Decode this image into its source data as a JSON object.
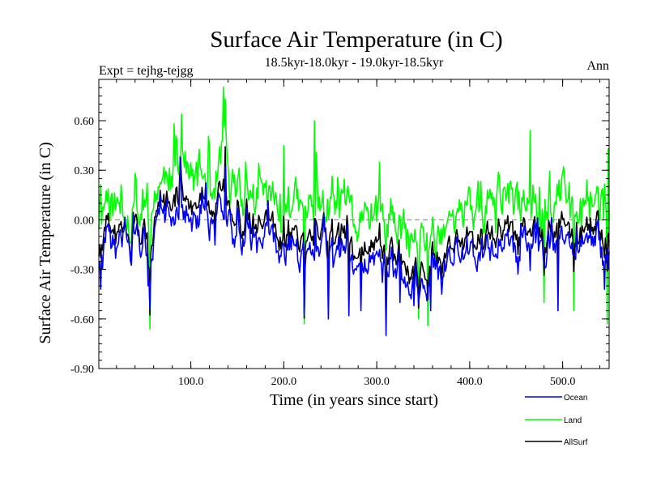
{
  "chart_data": {
    "type": "line",
    "title": "Surface Air Temperature (in C)",
    "subtitle": "18.5kyr-18.0kyr - 19.0kyr-18.5kyr",
    "left_label": "Expt = tejhg-tejgg",
    "right_label": "Ann",
    "xlabel": "Time (in years since start)",
    "ylabel": "Surface Air Temperature (in C)",
    "xlim": [
      1,
      550
    ],
    "ylim": [
      -0.9,
      0.85
    ],
    "x_ticks": [
      100,
      200,
      300,
      400,
      500
    ],
    "x_tick_labels": [
      "100.0",
      "200.0",
      "300.0",
      "400.0",
      "500.0"
    ],
    "y_ticks": [
      -0.9,
      -0.6,
      -0.3,
      0.0,
      0.3,
      0.6
    ],
    "y_tick_labels": [
      "-0.90",
      "-0.60",
      "-0.30",
      "0.00",
      "0.30",
      "0.60"
    ],
    "zero_line": 0,
    "colors": {
      "ocean": "#0000ff",
      "land": "#00ff00",
      "allsurf": "#000000",
      "zero": "#808080"
    },
    "series": [
      {
        "name": "Land",
        "x_start": 1,
        "x_step": 1,
        "anchors": [
          [
            1,
            0.0
          ],
          [
            5,
            0.05
          ],
          [
            10,
            0.18
          ],
          [
            15,
            0.1
          ],
          [
            20,
            0.05
          ],
          [
            25,
            0.08
          ],
          [
            30,
            0.12
          ],
          [
            35,
            -0.05
          ],
          [
            40,
            0.2
          ],
          [
            45,
            0.0
          ],
          [
            50,
            0.15
          ],
          [
            55,
            -0.1
          ],
          [
            60,
            0.1
          ],
          [
            65,
            0.25
          ],
          [
            70,
            0.2
          ],
          [
            75,
            0.35
          ],
          [
            80,
            0.2
          ],
          [
            85,
            0.3
          ],
          [
            90,
            0.45
          ],
          [
            95,
            0.3
          ],
          [
            100,
            0.25
          ],
          [
            105,
            0.2
          ],
          [
            110,
            0.3
          ],
          [
            115,
            0.25
          ],
          [
            120,
            0.2
          ],
          [
            125,
            0.2
          ],
          [
            130,
            0.3
          ],
          [
            135,
            0.5
          ],
          [
            140,
            0.25
          ],
          [
            145,
            0.2
          ],
          [
            150,
            0.2
          ],
          [
            155,
            0.1
          ],
          [
            160,
            0.12
          ],
          [
            165,
            0.15
          ],
          [
            170,
            0.12
          ],
          [
            175,
            0.18
          ],
          [
            180,
            0.15
          ],
          [
            185,
            0.15
          ],
          [
            190,
            0.1
          ],
          [
            195,
            0.05
          ],
          [
            200,
            0.08
          ],
          [
            205,
            0.12
          ],
          [
            210,
            0.1
          ],
          [
            215,
            0.08
          ],
          [
            220,
            0.0
          ],
          [
            225,
            0.05
          ],
          [
            230,
            0.1
          ],
          [
            235,
            0.12
          ],
          [
            240,
            0.05
          ],
          [
            245,
            0.08
          ],
          [
            250,
            0.05
          ],
          [
            255,
            0.03
          ],
          [
            260,
            0.05
          ],
          [
            265,
            0.0
          ],
          [
            270,
            0.05
          ],
          [
            275,
            0.0
          ],
          [
            280,
            -0.05
          ],
          [
            285,
            0.05
          ],
          [
            290,
            -0.1
          ],
          [
            295,
            0.05
          ],
          [
            300,
            0.0
          ],
          [
            305,
            -0.05
          ],
          [
            310,
            -0.05
          ],
          [
            315,
            0.05
          ],
          [
            320,
            -0.1
          ],
          [
            325,
            -0.05
          ],
          [
            330,
            -0.1
          ],
          [
            335,
            -0.15
          ],
          [
            340,
            -0.12
          ],
          [
            345,
            -0.18
          ],
          [
            350,
            -0.1
          ],
          [
            355,
            -0.15
          ],
          [
            360,
            -0.05
          ],
          [
            365,
            -0.1
          ],
          [
            370,
            -0.05
          ],
          [
            375,
            0.0
          ],
          [
            380,
            0.03
          ],
          [
            385,
            0.05
          ],
          [
            390,
            0.0
          ],
          [
            395,
            0.05
          ],
          [
            400,
            0.03
          ],
          [
            405,
            0.05
          ],
          [
            410,
            0.08
          ],
          [
            415,
            0.05
          ],
          [
            420,
            0.1
          ],
          [
            425,
            0.08
          ],
          [
            430,
            0.12
          ],
          [
            435,
            0.18
          ],
          [
            440,
            0.15
          ],
          [
            445,
            0.12
          ],
          [
            450,
            0.05
          ],
          [
            455,
            0.1
          ],
          [
            460,
            0.18
          ],
          [
            465,
            0.12
          ],
          [
            470,
            0.15
          ],
          [
            475,
            0.1
          ],
          [
            480,
            0.05
          ],
          [
            485,
            0.1
          ],
          [
            490,
            0.08
          ],
          [
            495,
            0.15
          ],
          [
            500,
            0.18
          ],
          [
            505,
            0.12
          ],
          [
            510,
            0.1
          ],
          [
            515,
            0.15
          ],
          [
            520,
            0.12
          ],
          [
            525,
            0.08
          ],
          [
            530,
            0.1
          ],
          [
            535,
            0.18
          ],
          [
            540,
            0.1
          ],
          [
            545,
            0.05
          ],
          [
            550,
            0.1
          ]
        ],
        "spikes": [
          [
            56,
            -0.66
          ],
          [
            82,
            0.58
          ],
          [
            90,
            0.64
          ],
          [
            137,
            0.73
          ],
          [
            120,
            0.45
          ],
          [
            200,
            0.45
          ],
          [
            222,
            -0.63
          ],
          [
            233,
            0.6
          ],
          [
            303,
            0.35
          ],
          [
            345,
            -0.6
          ],
          [
            355,
            -0.64
          ],
          [
            465,
            0.54
          ],
          [
            480,
            -0.5
          ],
          [
            512,
            -0.55
          ],
          [
            548,
            -0.63
          ],
          [
            549,
            0.43
          ]
        ]
      },
      {
        "name": "Ocean",
        "x_start": 1,
        "x_step": 1,
        "anchors": [
          [
            1,
            -0.25
          ],
          [
            5,
            -0.3
          ],
          [
            10,
            -0.1
          ],
          [
            15,
            -0.15
          ],
          [
            20,
            -0.2
          ],
          [
            25,
            -0.15
          ],
          [
            30,
            -0.1
          ],
          [
            35,
            -0.25
          ],
          [
            40,
            -0.05
          ],
          [
            45,
            -0.2
          ],
          [
            50,
            -0.1
          ],
          [
            55,
            -0.3
          ],
          [
            60,
            -0.15
          ],
          [
            65,
            -0.05
          ],
          [
            70,
            -0.05
          ],
          [
            75,
            0.05
          ],
          [
            80,
            -0.05
          ],
          [
            85,
            0.05
          ],
          [
            90,
            0.1
          ],
          [
            95,
            0.05
          ],
          [
            100,
            0.0
          ],
          [
            105,
            -0.05
          ],
          [
            110,
            0.05
          ],
          [
            115,
            0.0
          ],
          [
            120,
            -0.05
          ],
          [
            125,
            -0.05
          ],
          [
            130,
            0.05
          ],
          [
            135,
            0.1
          ],
          [
            140,
            0.0
          ],
          [
            145,
            -0.05
          ],
          [
            150,
            -0.05
          ],
          [
            155,
            -0.15
          ],
          [
            160,
            -0.1
          ],
          [
            165,
            -0.1
          ],
          [
            170,
            -0.12
          ],
          [
            175,
            -0.08
          ],
          [
            180,
            -0.1
          ],
          [
            185,
            -0.12
          ],
          [
            190,
            -0.15
          ],
          [
            195,
            -0.2
          ],
          [
            200,
            -0.18
          ],
          [
            205,
            -0.15
          ],
          [
            210,
            -0.15
          ],
          [
            215,
            -0.2
          ],
          [
            220,
            -0.25
          ],
          [
            225,
            -0.22
          ],
          [
            230,
            -0.15
          ],
          [
            235,
            -0.12
          ],
          [
            240,
            -0.2
          ],
          [
            245,
            -0.15
          ],
          [
            250,
            -0.18
          ],
          [
            255,
            -0.2
          ],
          [
            260,
            -0.18
          ],
          [
            265,
            -0.25
          ],
          [
            270,
            -0.2
          ],
          [
            275,
            -0.25
          ],
          [
            280,
            -0.3
          ],
          [
            285,
            -0.2
          ],
          [
            290,
            -0.35
          ],
          [
            295,
            -0.2
          ],
          [
            300,
            -0.25
          ],
          [
            305,
            -0.3
          ],
          [
            310,
            -0.32
          ],
          [
            315,
            -0.2
          ],
          [
            320,
            -0.3
          ],
          [
            325,
            -0.3
          ],
          [
            330,
            -0.35
          ],
          [
            335,
            -0.4
          ],
          [
            340,
            -0.38
          ],
          [
            345,
            -0.42
          ],
          [
            350,
            -0.35
          ],
          [
            355,
            -0.4
          ],
          [
            360,
            -0.3
          ],
          [
            365,
            -0.35
          ],
          [
            370,
            -0.3
          ],
          [
            375,
            -0.25
          ],
          [
            380,
            -0.22
          ],
          [
            385,
            -0.2
          ],
          [
            390,
            -0.25
          ],
          [
            395,
            -0.2
          ],
          [
            400,
            -0.22
          ],
          [
            405,
            -0.2
          ],
          [
            410,
            -0.18
          ],
          [
            415,
            -0.2
          ],
          [
            420,
            -0.15
          ],
          [
            425,
            -0.18
          ],
          [
            430,
            -0.15
          ],
          [
            435,
            -0.1
          ],
          [
            440,
            -0.12
          ],
          [
            445,
            -0.15
          ],
          [
            450,
            -0.2
          ],
          [
            455,
            -0.15
          ],
          [
            460,
            -0.1
          ],
          [
            465,
            -0.15
          ],
          [
            470,
            -0.12
          ],
          [
            475,
            -0.15
          ],
          [
            480,
            -0.2
          ],
          [
            485,
            -0.15
          ],
          [
            490,
            -0.18
          ],
          [
            495,
            -0.12
          ],
          [
            500,
            -0.1
          ],
          [
            505,
            -0.15
          ],
          [
            510,
            -0.15
          ],
          [
            515,
            -0.1
          ],
          [
            520,
            -0.12
          ],
          [
            525,
            -0.18
          ],
          [
            530,
            -0.15
          ],
          [
            535,
            -0.1
          ],
          [
            540,
            -0.15
          ],
          [
            545,
            -0.3
          ],
          [
            550,
            -0.2
          ]
        ],
        "spikes": [
          [
            3,
            -0.42
          ],
          [
            56,
            -0.54
          ],
          [
            89,
            0.38
          ],
          [
            137,
            0.32
          ],
          [
            222,
            -0.58
          ],
          [
            248,
            -0.6
          ],
          [
            270,
            -0.58
          ],
          [
            283,
            -0.55
          ],
          [
            310,
            -0.7
          ],
          [
            325,
            -0.5
          ],
          [
            340,
            -0.52
          ],
          [
            358,
            -0.55
          ],
          [
            370,
            -0.45
          ],
          [
            495,
            -0.55
          ],
          [
            545,
            -0.42
          ]
        ]
      },
      {
        "name": "AllSurf",
        "x_start": 1,
        "x_step": 1,
        "derived": "weighted combination of Ocean and Land (0.7 Ocean + 0.3 Land)"
      }
    ]
  },
  "legend": {
    "items": [
      {
        "label": "Ocean",
        "color": "#0000ff"
      },
      {
        "label": "Land",
        "color": "#00ff00"
      },
      {
        "label": "AllSurf",
        "color": "#000000"
      }
    ]
  }
}
